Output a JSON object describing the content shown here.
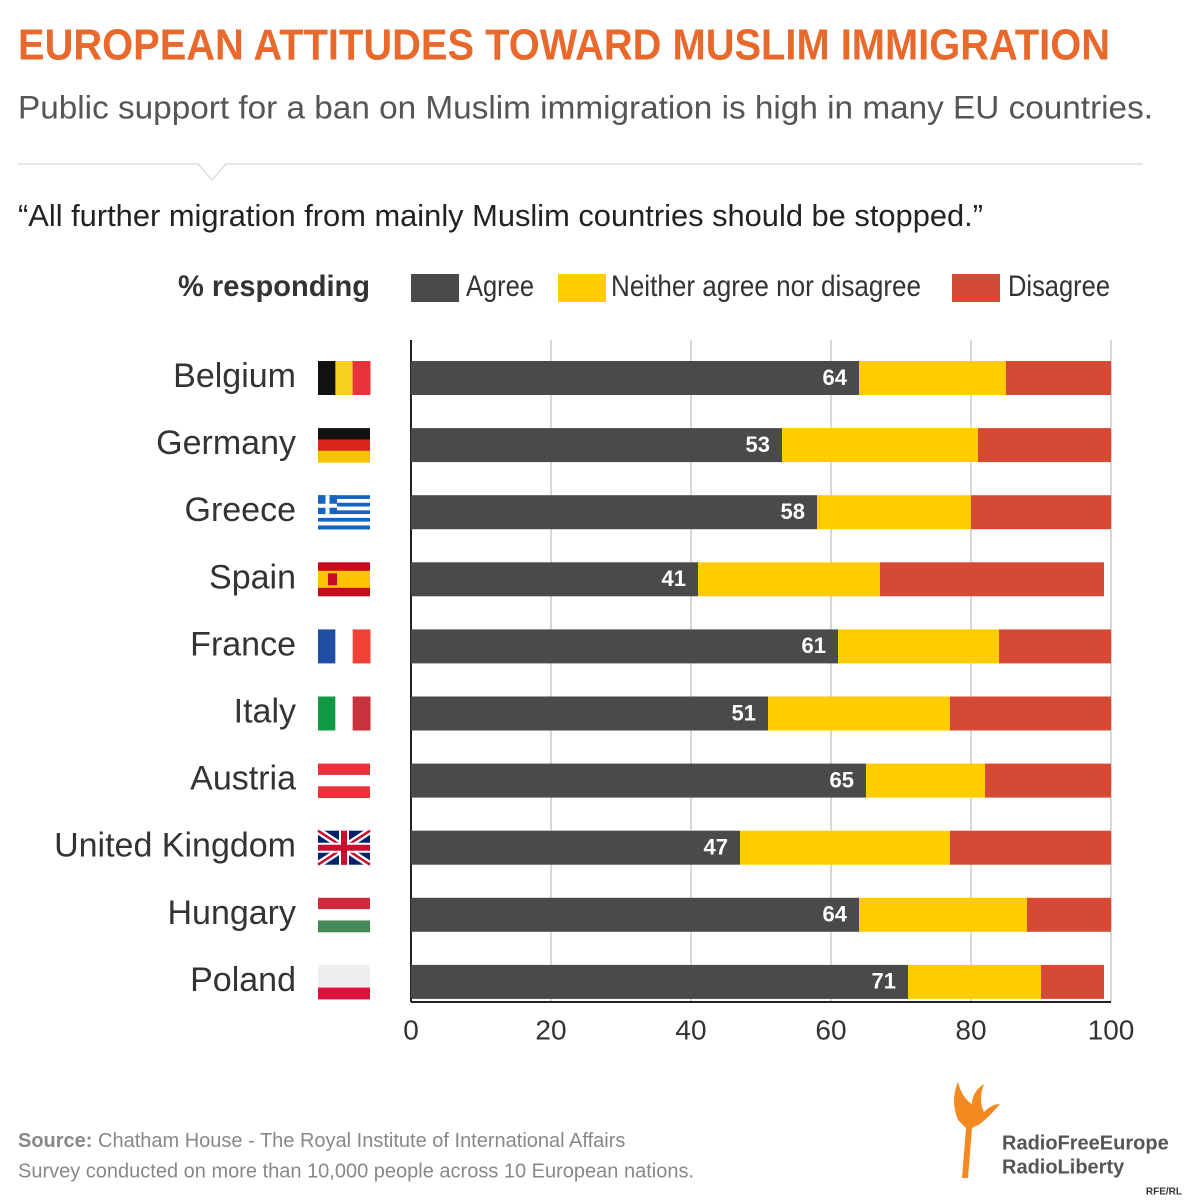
{
  "chart_data": {
    "type": "stacked_barh",
    "title": "EUROPEAN ATTITUDES TOWARD MUSLIM IMMIGRATION",
    "subtitle": "Public support for a ban on Muslim immigration is high in many EU countries.",
    "question": "“All further migration from mainly Muslim countries should be stopped.”",
    "legend_title": "% responding",
    "categories": [
      "Belgium",
      "Germany",
      "Greece",
      "Spain",
      "France",
      "Italy",
      "Austria",
      "United Kingdom",
      "Hungary",
      "Poland"
    ],
    "series": [
      {
        "name": "Agree",
        "color": "#4a4a4a",
        "values": [
          64,
          53,
          58,
          41,
          61,
          51,
          65,
          47,
          64,
          71
        ]
      },
      {
        "name": "Neither agree nor disagree",
        "color": "#ffcc00",
        "values": [
          21,
          28,
          22,
          26,
          23,
          26,
          17,
          30,
          24,
          19
        ]
      },
      {
        "name": "Disagree",
        "color": "#d64a35",
        "values": [
          15,
          19,
          20,
          32,
          16,
          23,
          18,
          23,
          12,
          9
        ]
      }
    ],
    "xlim": [
      0,
      100
    ],
    "xticks": [
      0,
      20,
      40,
      60,
      80,
      100
    ],
    "grid": true,
    "source_label": "Source:",
    "source": "Chatham House - The Royal Institute of International Affairs",
    "note": "Survey conducted on more than 10,000 people across 10 European nations.",
    "logo_line1": "RadioFreeEurope",
    "logo_line2": "RadioLiberty",
    "credit": "RFE/RL"
  }
}
